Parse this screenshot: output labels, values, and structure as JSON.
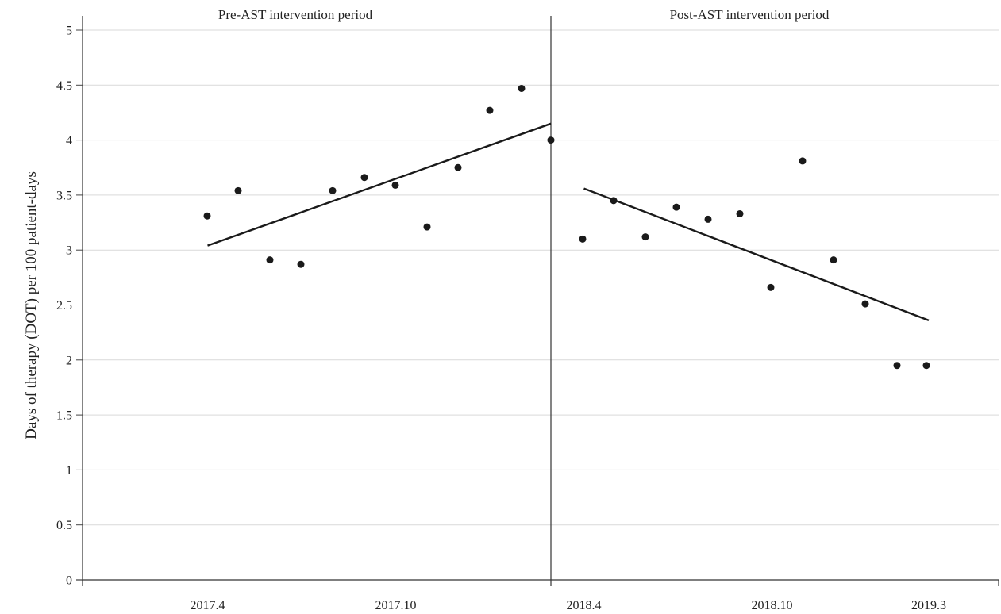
{
  "chart_data": {
    "type": "scatter",
    "ylabel": "Days of therapy (DOT) per 100 patient-days",
    "xlabel": "",
    "ylim": [
      0,
      5
    ],
    "yticks": [
      "0",
      "0.5",
      "1",
      "1.5",
      "2",
      "2.5",
      "3",
      "3.5",
      "4",
      "4.5",
      "5"
    ],
    "x_tick_labels": [
      "2017.4",
      "2017.10",
      "2018.4",
      "2018.10",
      "2019.3"
    ],
    "grid": "horizontal",
    "periods": [
      {
        "label": "Pre-AST intervention period"
      },
      {
        "label": "Post-AST intervention period"
      }
    ],
    "series": [
      {
        "x": [
          "2017.4",
          "2017.5",
          "2017.6",
          "2017.7",
          "2017.8",
          "2017.9",
          "2017.10",
          "2017.11",
          "2017.12",
          "2018.1",
          "2018.2",
          "2018.3",
          "2018.4"
        ],
        "values": [
          3.31,
          3.54,
          2.91,
          2.87,
          3.54,
          3.66,
          3.59,
          3.21,
          3.75,
          4.27,
          4.47,
          4.0,
          null
        ]
      }
    ],
    "pre_points": [
      3.31,
      3.54,
      2.91,
      2.87,
      3.54,
      3.66,
      3.59,
      3.21,
      3.75,
      4.27,
      4.47,
      4.0
    ],
    "post_points": [
      3.1,
      3.45,
      3.12,
      3.39,
      3.28,
      3.33,
      2.66,
      3.81,
      2.91,
      2.51,
      1.95,
      1.95
    ],
    "trend_lines": [
      {
        "start": 3.04,
        "end": 4.15
      },
      {
        "start": 3.56,
        "end": 2.36
      }
    ]
  }
}
